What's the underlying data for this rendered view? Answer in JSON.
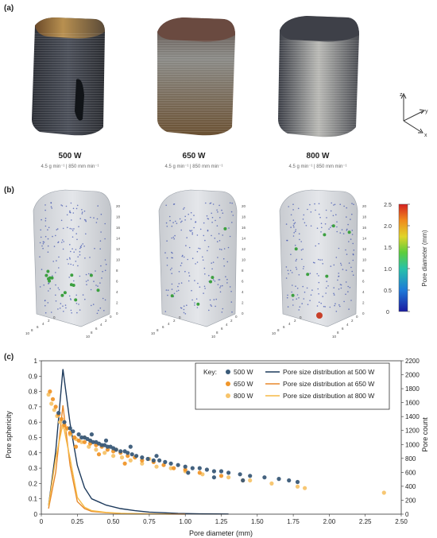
{
  "panels": {
    "a": "(a)",
    "b": "(b)",
    "c": "(c)"
  },
  "samples": [
    {
      "title": "500 W",
      "params": "4.5 g min⁻¹ | 850 mm min⁻¹"
    },
    {
      "title": "650 W",
      "params": "4.5 g min⁻¹ | 850 mm min⁻¹"
    },
    {
      "title": "800 W",
      "params": "4.5 g min⁻¹ | 850 mm min⁻¹"
    }
  ],
  "axes_triad": {
    "z": "z",
    "y": "y",
    "x": "x"
  },
  "colorbar": {
    "label": "Pore diameter (mm)",
    "ticks": [
      "2.5",
      "2.0",
      "1.5",
      "1.0",
      "0.5",
      "0"
    ]
  },
  "ct_axes": {
    "vertical_ticks": [
      "20",
      "18",
      "16",
      "14",
      "12",
      "10",
      "8",
      "6",
      "4",
      "2",
      "0"
    ],
    "base_ticks": [
      "10",
      "8",
      "6",
      "4",
      "2",
      "0"
    ]
  },
  "colors": {
    "500W": "#3a5a78",
    "650W": "#f0962a",
    "800W": "#f7c46b",
    "line500": "#1d3a5c",
    "line650": "#e8892a",
    "line800": "#f5b945"
  },
  "chart_data": {
    "type": "scatter",
    "xlabel": "Pore diameter (mm)",
    "ylabel": "Pore sphericity",
    "y2label": "Pore count",
    "xlim": [
      0,
      2.5
    ],
    "ylim": [
      0,
      1
    ],
    "y2lim": [
      0,
      2200
    ],
    "xticks": [
      "0",
      "0.25",
      "0.50",
      "0.75",
      "1.00",
      "1.25",
      "1.50",
      "1.75",
      "2.00",
      "2.25",
      "2.50"
    ],
    "yticks": [
      "0",
      "0.1",
      "0.2",
      "0.3",
      "0.4",
      "0.5",
      "0.6",
      "0.7",
      "0.8",
      "0.9",
      "1"
    ],
    "y2ticks": [
      "0",
      "200",
      "400",
      "600",
      "800",
      "1000",
      "1200",
      "1400",
      "1600",
      "1800",
      "2000",
      "2200"
    ],
    "legend": {
      "title": "Key:",
      "entries": [
        "500 W",
        "650 W",
        "800 W",
        "Pore size distribution at 500 W",
        "Pore size distribution at 650 W",
        "Pore size distribution at 800 W"
      ],
      "placement": "top-right"
    },
    "scatter_series": [
      {
        "name": "500 W",
        "points": [
          [
            0.12,
            0.66
          ],
          [
            0.16,
            0.6
          ],
          [
            0.2,
            0.56
          ],
          [
            0.22,
            0.54
          ],
          [
            0.26,
            0.52
          ],
          [
            0.28,
            0.5
          ],
          [
            0.3,
            0.5
          ],
          [
            0.32,
            0.49
          ],
          [
            0.34,
            0.48
          ],
          [
            0.36,
            0.47
          ],
          [
            0.38,
            0.47
          ],
          [
            0.4,
            0.46
          ],
          [
            0.42,
            0.45
          ],
          [
            0.44,
            0.45
          ],
          [
            0.46,
            0.44
          ],
          [
            0.48,
            0.44
          ],
          [
            0.5,
            0.43
          ],
          [
            0.52,
            0.42
          ],
          [
            0.55,
            0.41
          ],
          [
            0.58,
            0.41
          ],
          [
            0.6,
            0.4
          ],
          [
            0.63,
            0.39
          ],
          [
            0.66,
            0.38
          ],
          [
            0.7,
            0.37
          ],
          [
            0.74,
            0.36
          ],
          [
            0.78,
            0.35
          ],
          [
            0.82,
            0.35
          ],
          [
            0.86,
            0.34
          ],
          [
            0.9,
            0.33
          ],
          [
            0.95,
            0.32
          ],
          [
            1.0,
            0.31
          ],
          [
            1.05,
            0.3
          ],
          [
            1.1,
            0.3
          ],
          [
            1.15,
            0.29
          ],
          [
            1.2,
            0.28
          ],
          [
            1.25,
            0.28
          ],
          [
            1.3,
            0.27
          ],
          [
            1.38,
            0.26
          ],
          [
            1.45,
            0.25
          ],
          [
            1.55,
            0.24
          ],
          [
            1.65,
            0.23
          ],
          [
            1.72,
            0.22
          ],
          [
            1.78,
            0.21
          ],
          [
            0.35,
            0.52
          ],
          [
            0.45,
            0.48
          ],
          [
            0.62,
            0.44
          ],
          [
            0.8,
            0.38
          ],
          [
            1.02,
            0.27
          ],
          [
            1.2,
            0.24
          ],
          [
            1.4,
            0.22
          ]
        ]
      },
      {
        "name": "650 W",
        "points": [
          [
            0.06,
            0.8
          ],
          [
            0.08,
            0.75
          ],
          [
            0.1,
            0.7
          ],
          [
            0.12,
            0.65
          ],
          [
            0.14,
            0.62
          ],
          [
            0.16,
            0.58
          ],
          [
            0.18,
            0.56
          ],
          [
            0.2,
            0.53
          ],
          [
            0.23,
            0.5
          ],
          [
            0.26,
            0.48
          ],
          [
            0.3,
            0.47
          ],
          [
            0.34,
            0.46
          ],
          [
            0.38,
            0.45
          ],
          [
            0.42,
            0.44
          ],
          [
            0.46,
            0.42
          ],
          [
            0.5,
            0.41
          ],
          [
            0.55,
            0.4
          ],
          [
            0.6,
            0.38
          ],
          [
            0.65,
            0.37
          ],
          [
            0.7,
            0.35
          ],
          [
            0.78,
            0.34
          ],
          [
            0.85,
            0.32
          ],
          [
            0.92,
            0.3
          ],
          [
            1.0,
            0.29
          ],
          [
            1.1,
            0.27
          ],
          [
            1.25,
            0.25
          ],
          [
            1.4,
            0.22
          ],
          [
            0.24,
            0.44
          ],
          [
            0.4,
            0.39
          ],
          [
            0.58,
            0.33
          ]
        ]
      },
      {
        "name": "800 W",
        "points": [
          [
            0.05,
            0.78
          ],
          [
            0.07,
            0.72
          ],
          [
            0.09,
            0.68
          ],
          [
            0.11,
            0.64
          ],
          [
            0.13,
            0.6
          ],
          [
            0.15,
            0.57
          ],
          [
            0.17,
            0.55
          ],
          [
            0.2,
            0.52
          ],
          [
            0.24,
            0.49
          ],
          [
            0.28,
            0.47
          ],
          [
            0.33,
            0.44
          ],
          [
            0.38,
            0.42
          ],
          [
            0.44,
            0.4
          ],
          [
            0.5,
            0.38
          ],
          [
            0.56,
            0.37
          ],
          [
            0.62,
            0.35
          ],
          [
            0.7,
            0.33
          ],
          [
            0.8,
            0.31
          ],
          [
            0.9,
            0.3
          ],
          [
            1.0,
            0.28
          ],
          [
            1.12,
            0.26
          ],
          [
            1.3,
            0.24
          ],
          [
            1.45,
            0.22
          ],
          [
            1.6,
            0.2
          ],
          [
            1.78,
            0.18
          ],
          [
            1.83,
            0.17
          ],
          [
            2.38,
            0.14
          ],
          [
            0.3,
            0.5
          ],
          [
            0.52,
            0.42
          ],
          [
            0.75,
            0.36
          ]
        ]
      }
    ],
    "line_series": [
      {
        "name": "Pore size distribution at 500 W",
        "x": [
          0.05,
          0.1,
          0.15,
          0.2,
          0.25,
          0.3,
          0.35,
          0.45,
          0.55,
          0.65,
          0.75,
          0.85,
          0.95,
          1.1,
          1.3
        ],
        "y": [
          120,
          900,
          2080,
          1300,
          700,
          380,
          220,
          130,
          80,
          50,
          30,
          20,
          10,
          5,
          2
        ]
      },
      {
        "name": "Pore size distribution at 650 W",
        "x": [
          0.05,
          0.1,
          0.15,
          0.2,
          0.25,
          0.3,
          0.35,
          0.45,
          0.55,
          0.65,
          0.75,
          0.85,
          1.0
        ],
        "y": [
          80,
          600,
          1560,
          700,
          180,
          80,
          40,
          20,
          10,
          6,
          4,
          2,
          1
        ]
      },
      {
        "name": "Pore size distribution at 800 W",
        "x": [
          0.05,
          0.1,
          0.15,
          0.2,
          0.25,
          0.3,
          0.35,
          0.45,
          0.55,
          0.65,
          0.75,
          0.9
        ],
        "y": [
          120,
          800,
          1300,
          800,
          240,
          100,
          50,
          25,
          12,
          6,
          3,
          1
        ]
      }
    ]
  }
}
